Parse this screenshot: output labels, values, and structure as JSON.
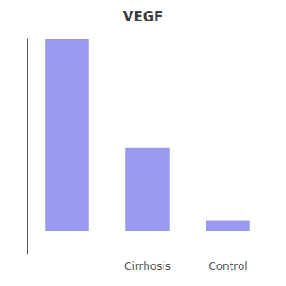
{
  "chart_data": {
    "type": "bar",
    "title": "VEGF",
    "categories": [
      null,
      "Cirrhosis",
      "Control"
    ],
    "values": [
      1,
      0.4318181818181818,
      0.05454545454545454
    ],
    "color": "#9999ee",
    "ylim": [
      -0.12,
      1.0
    ],
    "grid": false,
    "tick_labels": "x"
  }
}
